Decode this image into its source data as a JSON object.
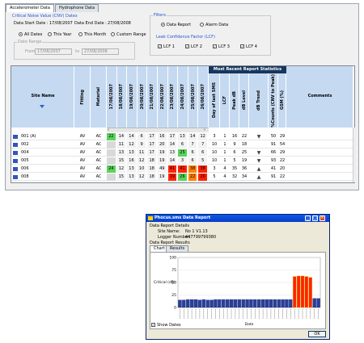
{
  "main": {
    "tabs": [
      "Accelerometer Data",
      "Hydrophone Data"
    ],
    "cnv": {
      "title": "Critical Noise Value (CNV) Dates",
      "start_label": "Data Start Date :",
      "start_value": "17/08/2007",
      "end_label": "Data End Date :",
      "end_value": "27/08/2008",
      "options": [
        "All Dates",
        "This Year",
        "This Month",
        "Custom Range"
      ],
      "range_label": "Date Range",
      "from_label": "From",
      "from_value": "17/08/2007",
      "to_label": "to",
      "to_value": "27/08/2008"
    },
    "filters": {
      "title": "Filters",
      "report_options": [
        "Data Report",
        "Alarm Data"
      ],
      "lcf_title": "Leak Confidence Factor (LCF)",
      "lcf_options": [
        "LCF 1",
        "LCF 2",
        "LCF 3",
        "LCF 4"
      ]
    },
    "table": {
      "col_site": "Site Name",
      "col_fitting": "Fitting",
      "col_material": "Material",
      "dates": [
        "17/08/2007",
        "18/08/2007",
        "19/08/2007",
        "20/08/2007",
        "21/08/2007",
        "22/08/2007",
        "23/08/2007",
        "24/08/2007",
        "25/08/2007",
        "26/08/2007"
      ],
      "stats_title": "Most Recent Report Statistics",
      "stats_cols": [
        "Day of last SMS",
        "LCF",
        "Peak dB",
        "dB Level",
        "dB Trend",
        "%Counts (CNV to Peak)",
        "GSM (%)"
      ],
      "col_comments": "Comments",
      "trend_select": "8",
      "rows": [
        {
          "name": "001 (A)",
          "fitting": "AV",
          "material": "AC",
          "vals": [
            "22",
            "14",
            "14",
            "6",
            "17",
            "16",
            "17",
            "13",
            "14",
            "12"
          ],
          "colors": [
            "#5ad25a",
            "",
            "",
            "",
            "",
            "",
            "",
            "",
            "",
            ""
          ],
          "day": "3",
          "lcf": "1",
          "peak": "16",
          "level": "22",
          "trend": "down",
          "counts": "50",
          "gsm": "29"
        },
        {
          "name": "002",
          "fitting": "AV",
          "material": "AC",
          "vals": [
            "",
            "11",
            "12",
            "9",
            "17",
            "20",
            "14",
            "6",
            "7",
            "7"
          ],
          "colors": [
            "",
            "",
            "",
            "",
            "",
            "",
            "",
            "",
            "",
            ""
          ],
          "day": "10",
          "lcf": "1",
          "peak": "9",
          "level": "18",
          "trend": "",
          "counts": "91",
          "gsm": "54"
        },
        {
          "name": "004",
          "fitting": "AV",
          "material": "AC",
          "vals": [
            "",
            "13",
            "13",
            "11",
            "17",
            "19",
            "13",
            "25",
            "6",
            "6"
          ],
          "colors": [
            "",
            "",
            "",
            "",
            "",
            "",
            "",
            "#5ad25a",
            "",
            ""
          ],
          "day": "10",
          "lcf": "1",
          "peak": "6",
          "level": "25",
          "trend": "down",
          "counts": "66",
          "gsm": "29"
        },
        {
          "name": "005",
          "fitting": "AV",
          "material": "AC",
          "vals": [
            "",
            "15",
            "16",
            "12",
            "18",
            "19",
            "14",
            "3",
            "6",
            "5"
          ],
          "colors": [
            "",
            "",
            "",
            "",
            "",
            "",
            "",
            "",
            "",
            ""
          ],
          "day": "10",
          "lcf": "1",
          "peak": "5",
          "level": "19",
          "trend": "down",
          "counts": "93",
          "gsm": "22"
        },
        {
          "name": "006",
          "fitting": "AV",
          "material": "AC",
          "vals": [
            "24",
            "12",
            "13",
            "10",
            "18",
            "49",
            "41",
            "41",
            "38",
            "38"
          ],
          "colors": [
            "#5ad25a",
            "",
            "",
            "",
            "",
            "",
            "#ff2200",
            "#ff2200",
            "#ff8000",
            "#ff2200"
          ],
          "day": "3",
          "lcf": "4",
          "peak": "35",
          "level": "36",
          "trend": "up",
          "counts": "41",
          "gsm": "20"
        },
        {
          "name": "008",
          "fitting": "AV",
          "material": "AC",
          "vals": [
            "",
            "15",
            "13",
            "12",
            "18",
            "19",
            "19",
            "26",
            "22",
            "26"
          ],
          "colors": [
            "",
            "",
            "",
            "",
            "",
            "",
            "#ff2200",
            "#5ad25a",
            "#ff8000",
            "#ff2200"
          ],
          "day": "5",
          "lcf": "4",
          "peak": "32",
          "level": "34",
          "trend": "up",
          "counts": "91",
          "gsm": "22"
        }
      ]
    }
  },
  "dialog": {
    "title": "Phocus.sms Data Report",
    "details_title": "Data Report Details",
    "site_label": "Site Name:",
    "site_value": "No 1 V1.13",
    "logger_label": "Logger Number:",
    "logger_value": "447799799380",
    "results_title": "Data Report Results",
    "tabs": [
      "Chart",
      "Results"
    ],
    "show_dates": "Show Dates",
    "ok": "OK"
  },
  "chart_data": {
    "type": "bar",
    "ylabel": "Critical (dB)",
    "xlabel": "Date",
    "ylim": [
      0,
      100
    ],
    "yticks": [
      0,
      25,
      50,
      75,
      100
    ],
    "values": [
      15,
      15,
      16,
      16,
      16,
      15,
      16,
      15,
      15,
      16,
      16,
      16,
      16,
      16,
      16,
      16,
      16,
      16,
      16,
      16,
      16,
      16,
      16,
      16,
      16,
      16,
      16,
      16,
      16,
      62,
      63,
      63,
      62,
      60,
      18,
      18
    ],
    "bar_colors": {
      "normal": "#2a3e9a",
      "alarm": "#ff2400",
      "alarm_edge": "#d4cc00"
    },
    "alarm_from_index": 29,
    "alarm_to_index": 33
  }
}
